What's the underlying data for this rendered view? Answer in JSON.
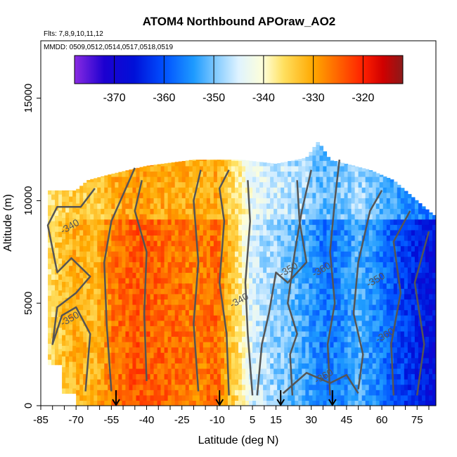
{
  "chart_data": {
    "type": "heatmap",
    "title": "ATOM4 Northbound APOraw_AO2",
    "notes": [
      "Flts: 7,8,9,10,11,12",
      "MMDD: 0509,0512,0514,0517,0518,0519"
    ],
    "xlabel": "Latitude (deg N)",
    "ylabel": "Altitude (m)",
    "xlim": [
      -85,
      83
    ],
    "ylim": [
      0,
      17800
    ],
    "x_ticks": [
      -85,
      -70,
      -55,
      -40,
      -25,
      -10,
      5,
      15,
      30,
      45,
      60,
      75
    ],
    "x_minor_step": 5,
    "y_ticks": [
      0,
      5000,
      10000,
      15000
    ],
    "colorbar": {
      "min": -378,
      "max": -312,
      "ticks": [
        -370,
        -360,
        -350,
        -340,
        -330,
        -320
      ],
      "stops": [
        {
          "v": -378,
          "c": "#8a2be2"
        },
        {
          "v": -372,
          "c": "#1c00d0"
        },
        {
          "v": -366,
          "c": "#0010d8"
        },
        {
          "v": -360,
          "c": "#0050ff"
        },
        {
          "v": -354,
          "c": "#1e9bff"
        },
        {
          "v": -349,
          "c": "#8fd0ff"
        },
        {
          "v": -345,
          "c": "#dff3ff"
        },
        {
          "v": -340,
          "c": "#ffffd8"
        },
        {
          "v": -336,
          "c": "#ffe060"
        },
        {
          "v": -330,
          "c": "#ffa800"
        },
        {
          "v": -325,
          "c": "#ff6400"
        },
        {
          "v": -320,
          "c": "#ff2000"
        },
        {
          "v": -316,
          "c": "#d00000"
        },
        {
          "v": -312,
          "c": "#8b1a1a"
        }
      ]
    },
    "contour_levels": [
      -340,
      -350,
      -360
    ],
    "contour_labels": [
      {
        "text": "-340",
        "lat": -72,
        "alt": 8600
      },
      {
        "text": "-350",
        "lat": -72,
        "alt": 4100
      },
      {
        "text": "-340",
        "lat": 0,
        "alt": 5000
      },
      {
        "text": "-350",
        "lat": 21,
        "alt": 6500
      },
      {
        "text": "-360",
        "lat": 35,
        "alt": 6500
      },
      {
        "text": "-350",
        "lat": 58,
        "alt": 6000
      },
      {
        "text": "-360",
        "lat": 62,
        "alt": 3300
      },
      {
        "text": "-360",
        "lat": 36,
        "alt": 1300
      }
    ],
    "profile_markers_lat": [
      -53,
      -9,
      17,
      39
    ],
    "value_profile": [
      {
        "lat": -84,
        "v": -338
      },
      {
        "lat": -78,
        "v": -334
      },
      {
        "lat": -70,
        "v": -331
      },
      {
        "lat": -62,
        "v": -332
      },
      {
        "lat": -54,
        "v": -326
      },
      {
        "lat": -45,
        "v": -324
      },
      {
        "lat": -35,
        "v": -325
      },
      {
        "lat": -25,
        "v": -326
      },
      {
        "lat": -18,
        "v": -327
      },
      {
        "lat": -10,
        "v": -325
      },
      {
        "lat": -5,
        "v": -332
      },
      {
        "lat": 0,
        "v": -338
      },
      {
        "lat": 5,
        "v": -345
      },
      {
        "lat": 12,
        "v": -348
      },
      {
        "lat": 20,
        "v": -350
      },
      {
        "lat": 28,
        "v": -353
      },
      {
        "lat": 35,
        "v": -357
      },
      {
        "lat": 42,
        "v": -356
      },
      {
        "lat": 50,
        "v": -352
      },
      {
        "lat": 57,
        "v": -355
      },
      {
        "lat": 65,
        "v": -360
      },
      {
        "lat": 72,
        "v": -363
      },
      {
        "lat": 80,
        "v": -366
      }
    ],
    "top_profile": [
      {
        "lat": -83,
        "alt": 10500
      },
      {
        "lat": -70,
        "alt": 10500
      },
      {
        "lat": -65,
        "alt": 11000
      },
      {
        "lat": -55,
        "alt": 11300
      },
      {
        "lat": -40,
        "alt": 11700
      },
      {
        "lat": -20,
        "alt": 12000
      },
      {
        "lat": 0,
        "alt": 12000
      },
      {
        "lat": 15,
        "alt": 11800
      },
      {
        "lat": 28,
        "alt": 12100
      },
      {
        "lat": 33,
        "alt": 12900
      },
      {
        "lat": 38,
        "alt": 12000
      },
      {
        "lat": 55,
        "alt": 11500
      },
      {
        "lat": 65,
        "alt": 11000
      },
      {
        "lat": 75,
        "alt": 10000
      },
      {
        "lat": 82,
        "alt": 9300
      }
    ]
  }
}
